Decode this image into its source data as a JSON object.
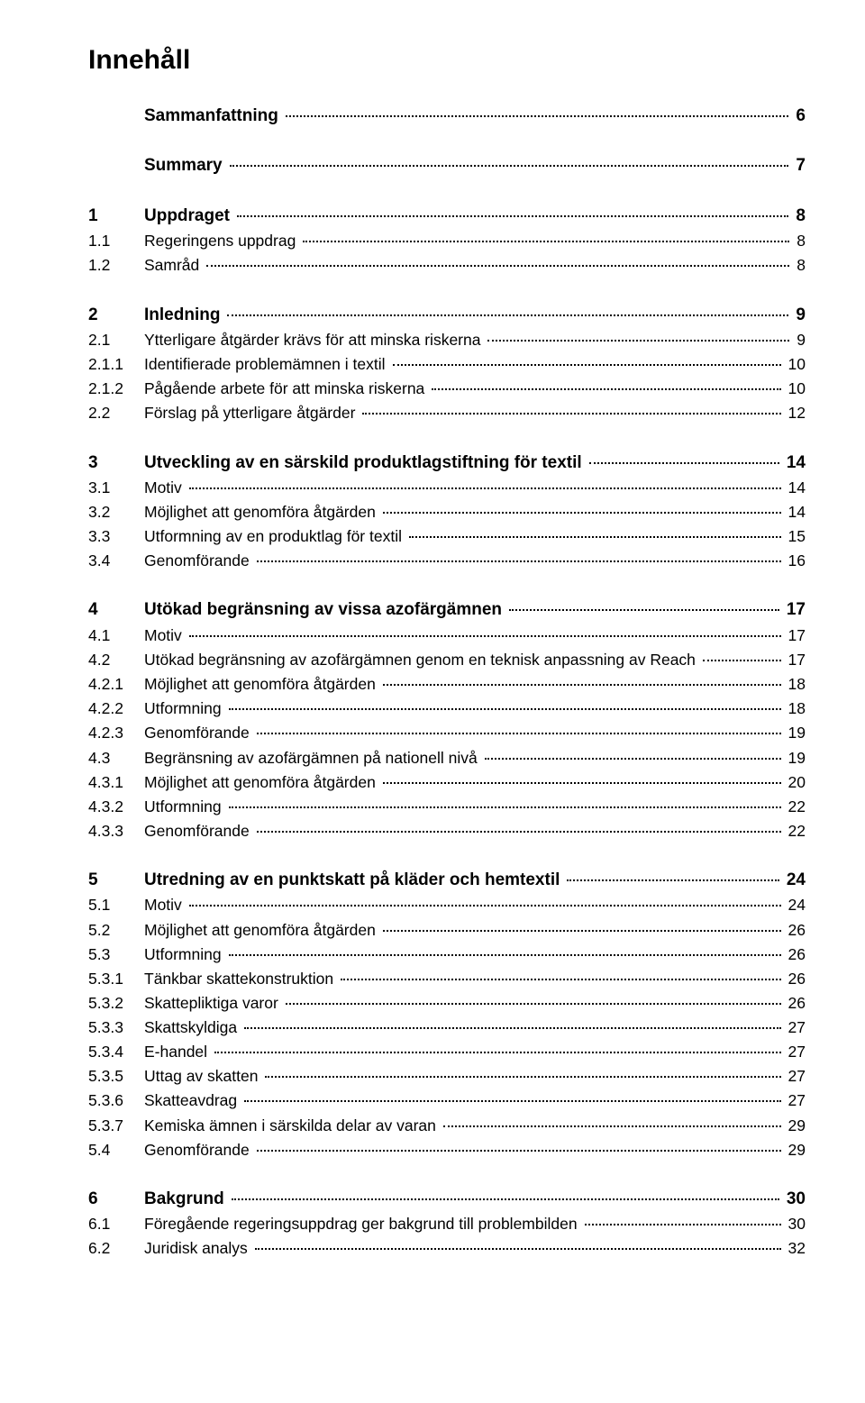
{
  "doc_title": "Innehåll",
  "toc": [
    {
      "num": "",
      "label": "Sammanfattning",
      "page": "6",
      "bold": true,
      "spacer": "lg"
    },
    {
      "num": "",
      "label": "Summary",
      "page": "7",
      "bold": true,
      "spacer": "lg"
    },
    {
      "num": "1",
      "label": "Uppdraget",
      "page": "8",
      "bold": true
    },
    {
      "num": "1.1",
      "label": "Regeringens uppdrag",
      "page": "8"
    },
    {
      "num": "1.2",
      "label": "Samråd",
      "page": "8",
      "spacer": "lg"
    },
    {
      "num": "2",
      "label": "Inledning",
      "page": "9",
      "bold": true
    },
    {
      "num": "2.1",
      "label": "Ytterligare åtgärder krävs för att minska riskerna",
      "page": "9"
    },
    {
      "num": "2.1.1",
      "label": "Identifierade problemämnen i textil",
      "page": "10"
    },
    {
      "num": "2.1.2",
      "label": "Pågående arbete för att minska riskerna",
      "page": "10"
    },
    {
      "num": "2.2",
      "label": "Förslag på ytterligare åtgärder",
      "page": "12",
      "spacer": "lg"
    },
    {
      "num": "3",
      "label": "Utveckling av en särskild produktlagstiftning för textil",
      "page": "14",
      "bold": true
    },
    {
      "num": "3.1",
      "label": "Motiv",
      "page": "14"
    },
    {
      "num": "3.2",
      "label": "Möjlighet att genomföra åtgärden",
      "page": "14"
    },
    {
      "num": "3.3",
      "label": "Utformning av en produktlag för textil",
      "page": "15"
    },
    {
      "num": "3.4",
      "label": "Genomförande",
      "page": "16",
      "spacer": "lg"
    },
    {
      "num": "4",
      "label": "Utökad begränsning av vissa azofärgämnen",
      "page": "17",
      "bold": true
    },
    {
      "num": "4.1",
      "label": "Motiv",
      "page": "17"
    },
    {
      "num": "4.2",
      "label": "Utökad begränsning av azofärgämnen genom en teknisk anpassning av Reach",
      "page": "17"
    },
    {
      "num": "4.2.1",
      "label": "Möjlighet att genomföra åtgärden",
      "page": "18"
    },
    {
      "num": "4.2.2",
      "label": "Utformning",
      "page": "18"
    },
    {
      "num": "4.2.3",
      "label": "Genomförande",
      "page": "19"
    },
    {
      "num": "4.3",
      "label": "Begränsning av azofärgämnen på nationell nivå",
      "page": "19"
    },
    {
      "num": "4.3.1",
      "label": "Möjlighet att genomföra åtgärden",
      "page": "20"
    },
    {
      "num": "4.3.2",
      "label": "Utformning",
      "page": "22"
    },
    {
      "num": "4.3.3",
      "label": "Genomförande",
      "page": "22",
      "spacer": "lg"
    },
    {
      "num": "5",
      "label": "Utredning av en punktskatt på kläder och hemtextil",
      "page": "24",
      "bold": true
    },
    {
      "num": "5.1",
      "label": "Motiv",
      "page": "24"
    },
    {
      "num": "5.2",
      "label": "Möjlighet att genomföra åtgärden",
      "page": "26"
    },
    {
      "num": "5.3",
      "label": "Utformning",
      "page": "26"
    },
    {
      "num": "5.3.1",
      "label": "Tänkbar skattekonstruktion",
      "page": "26"
    },
    {
      "num": "5.3.2",
      "label": "Skattepliktiga varor",
      "page": "26"
    },
    {
      "num": "5.3.3",
      "label": "Skattskyldiga",
      "page": "27"
    },
    {
      "num": "5.3.4",
      "label": "E-handel",
      "page": "27"
    },
    {
      "num": "5.3.5",
      "label": "Uttag av skatten",
      "page": "27"
    },
    {
      "num": "5.3.6",
      "label": "Skatteavdrag",
      "page": "27"
    },
    {
      "num": "5.3.7",
      "label": "Kemiska ämnen i särskilda delar av varan",
      "page": "29"
    },
    {
      "num": "5.4",
      "label": "Genomförande",
      "page": "29",
      "spacer": "lg"
    },
    {
      "num": "6",
      "label": "Bakgrund",
      "page": "30",
      "bold": true
    },
    {
      "num": "6.1",
      "label": "Föregående regeringsuppdrag ger bakgrund till problembilden",
      "page": "30"
    },
    {
      "num": "6.2",
      "label": "Juridisk analys",
      "page": "32"
    }
  ]
}
